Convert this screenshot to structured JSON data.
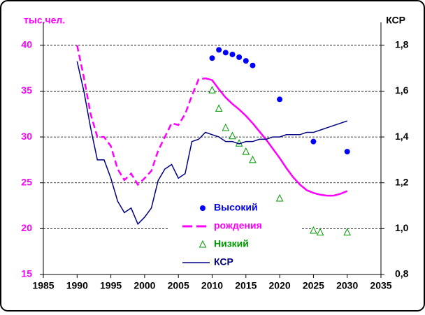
{
  "chart_data": {
    "type": "line",
    "y_label": "тыс.чел.",
    "y2_label": "КСР",
    "xlim": [
      1985,
      2035
    ],
    "xticks": [
      1985,
      1990,
      1995,
      2000,
      2005,
      2010,
      2015,
      2020,
      2025,
      2030,
      2035
    ],
    "ylim": [
      15,
      42.5
    ],
    "yticks": [
      15,
      20,
      25,
      30,
      35,
      40
    ],
    "y2lim": [
      0.8,
      1.9
    ],
    "y2ticks": [
      {
        "value": 0.8,
        "label": "0,8"
      },
      {
        "value": 1.0,
        "label": "1,0"
      },
      {
        "value": 1.2,
        "label": "1,2"
      },
      {
        "value": 1.4,
        "label": "1,4"
      },
      {
        "value": 1.6,
        "label": "1,6"
      },
      {
        "value": 1.8,
        "label": "1,8"
      }
    ],
    "grid": true,
    "tick_color": "#ff00ff",
    "series": [
      {
        "name": "Высокий",
        "color": "#0000ff",
        "marker": "circle",
        "x": [
          2010,
          2011,
          2012,
          2013,
          2014,
          2015,
          2016,
          2020,
          2025,
          2030
        ],
        "values": [
          38.6,
          39.5,
          39.2,
          39.0,
          38.7,
          38.3,
          37.8,
          34.1,
          29.5,
          28.4
        ]
      },
      {
        "name": "рождения",
        "color": "#ff00ff",
        "marker": "dashed",
        "solid_from": 2009,
        "x": [
          1990,
          1991,
          1992,
          1993,
          1994,
          1995,
          1996,
          1997,
          1998,
          1999,
          2000,
          2001,
          2002,
          2003,
          2004,
          2005,
          2006,
          2007,
          2008,
          2009,
          2010,
          2011,
          2012,
          2013,
          2014,
          2015,
          2016,
          2017,
          2018,
          2019,
          2020,
          2021,
          2022,
          2023,
          2024,
          2025,
          2026,
          2027,
          2028,
          2029,
          2030
        ],
        "values": [
          40,
          36.5,
          32.5,
          30,
          30,
          29,
          26.5,
          25.3,
          26,
          24.8,
          25.5,
          26.3,
          28.5,
          30,
          31.5,
          31.3,
          32.5,
          34.5,
          36.3,
          36.4,
          36.2,
          35.2,
          34.3,
          33.6,
          33.0,
          32.3,
          31.5,
          30.6,
          29.7,
          28.7,
          27.7,
          26.6,
          25.6,
          24.8,
          24.2,
          23.9,
          23.7,
          23.6,
          23.6,
          23.8,
          24.1
        ]
      },
      {
        "name": "Низкий",
        "color": "#009900",
        "marker": "triangle",
        "x": [
          2010,
          2011,
          2012,
          2013,
          2014,
          2015,
          2016,
          2020,
          2025,
          2026,
          2030
        ],
        "values": [
          35.1,
          33.1,
          31.0,
          30.1,
          29.3,
          28.4,
          27.5,
          23.3,
          19.8,
          19.6,
          19.6
        ]
      },
      {
        "name": "КСР",
        "color": "#000080",
        "marker": "line",
        "axis": "y2",
        "x": [
          1990,
          1991,
          1992,
          1993,
          1994,
          1995,
          1996,
          1997,
          1998,
          1999,
          2000,
          2001,
          2002,
          2003,
          2004,
          2005,
          2006,
          2007,
          2008,
          2009,
          2010,
          2011,
          2012,
          2013,
          2014,
          2015,
          2016,
          2017,
          2018,
          2019,
          2020,
          2021,
          2022,
          2023,
          2024,
          2025,
          2026,
          2027,
          2028,
          2029,
          2030
        ],
        "values": [
          1.73,
          1.6,
          1.44,
          1.3,
          1.3,
          1.22,
          1.12,
          1.07,
          1.09,
          1.02,
          1.05,
          1.09,
          1.21,
          1.26,
          1.28,
          1.22,
          1.24,
          1.38,
          1.39,
          1.42,
          1.41,
          1.4,
          1.38,
          1.38,
          1.37,
          1.38,
          1.38,
          1.39,
          1.39,
          1.4,
          1.4,
          1.41,
          1.41,
          1.41,
          1.42,
          1.42,
          1.43,
          1.44,
          1.45,
          1.46,
          1.47
        ]
      }
    ]
  }
}
